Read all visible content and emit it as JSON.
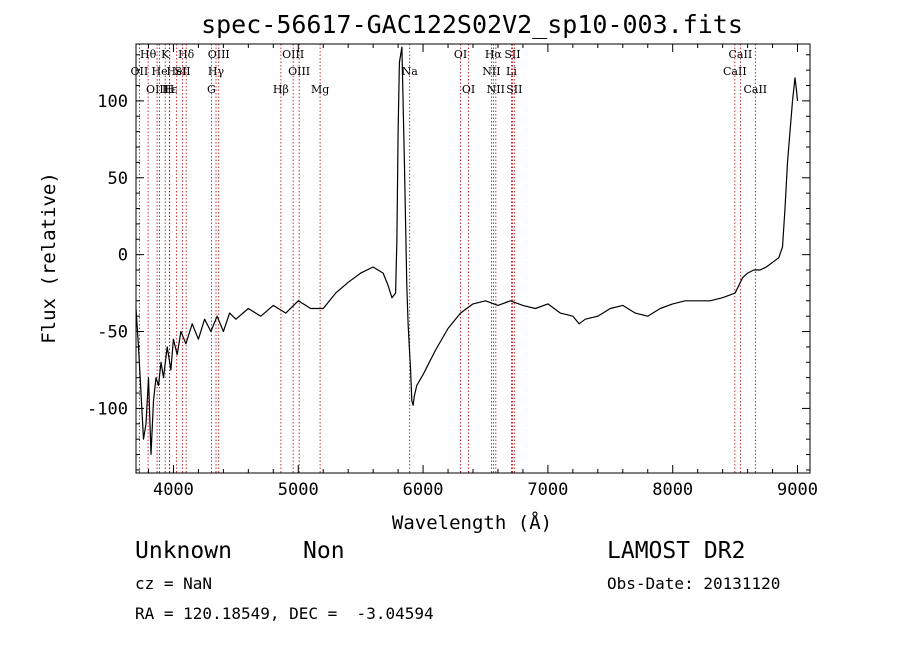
{
  "chart_data": {
    "type": "line",
    "title": "spec-56617-GAC122S02V2_sp10-003.fits",
    "xlabel": "Wavelength (Å)",
    "ylabel": "Flux (relative)",
    "xlim": [
      3700,
      9100
    ],
    "ylim": [
      -142,
      137
    ],
    "xticks": [
      4000,
      5000,
      6000,
      7000,
      8000,
      9000
    ],
    "yticks": [
      -100,
      -50,
      0,
      50,
      100
    ],
    "grid": false,
    "series": [
      {
        "x": [
          3700,
          3720,
          3740,
          3760,
          3780,
          3800,
          3820,
          3840,
          3860,
          3880,
          3900,
          3920,
          3950,
          3980,
          4000,
          4030,
          4060,
          4100,
          4150,
          4200,
          4250,
          4300,
          4350,
          4400,
          4450,
          4500,
          4600,
          4700,
          4800,
          4900,
          5000,
          5100,
          5200,
          5300,
          5400,
          5500,
          5600,
          5680,
          5720,
          5750,
          5780,
          5790,
          5800,
          5810,
          5830,
          5850,
          5870,
          5880,
          5890,
          5900,
          5910,
          5920,
          5930,
          5950,
          6000,
          6050,
          6100,
          6200,
          6300,
          6400,
          6500,
          6600,
          6700,
          6800,
          6900,
          7000,
          7100,
          7200,
          7250,
          7300,
          7400,
          7500,
          7600,
          7700,
          7800,
          7900,
          8000,
          8100,
          8200,
          8300,
          8400,
          8500,
          8560,
          8600,
          8650,
          8700,
          8750,
          8800,
          8850,
          8880,
          8900,
          8920,
          8940,
          8960,
          8980,
          8990,
          9000
        ],
        "values": [
          -35,
          -60,
          -90,
          -120,
          -110,
          -80,
          -130,
          -95,
          -80,
          -85,
          -70,
          -80,
          -60,
          -75,
          -55,
          -65,
          -50,
          -58,
          -45,
          -55,
          -42,
          -50,
          -40,
          -50,
          -38,
          -42,
          -35,
          -40,
          -33,
          -38,
          -30,
          -35,
          -35,
          -25,
          -18,
          -12,
          -8,
          -12,
          -20,
          -28,
          -25,
          10,
          80,
          125,
          135,
          60,
          -20,
          -45,
          -60,
          -75,
          -95,
          -98,
          -92,
          -85,
          -78,
          -70,
          -62,
          -48,
          -38,
          -32,
          -30,
          -33,
          -30,
          -33,
          -35,
          -32,
          -38,
          -40,
          -45,
          -42,
          -40,
          -35,
          -33,
          -38,
          -40,
          -35,
          -32,
          -30,
          -30,
          -30,
          -28,
          -25,
          -15,
          -12,
          -10,
          -10,
          -8,
          -5,
          -2,
          5,
          30,
          60,
          80,
          100,
          115,
          108,
          100
        ]
      }
    ],
    "line_labels": [
      {
        "label": "Hθ",
        "x": 3797,
        "row": 1
      },
      {
        "label": "OII",
        "x": 3727,
        "row": 2
      },
      {
        "label": "OIII",
        "x": 3869,
        "row": 3
      },
      {
        "label": "He",
        "x": 3889,
        "row": 2
      },
      {
        "label": "K",
        "x": 3934,
        "row": 1
      },
      {
        "label": "Hε",
        "x": 3970,
        "row": 3
      },
      {
        "label": "HeI",
        "x": 4026,
        "row": 2
      },
      {
        "label": "Hδ",
        "x": 4102,
        "row": 1
      },
      {
        "label": "SII",
        "x": 4072,
        "row": 2
      },
      {
        "label": "H",
        "x": 3968,
        "row": 3
      },
      {
        "label": "OIII",
        "x": 4363,
        "row": 1
      },
      {
        "label": "Hγ",
        "x": 4341,
        "row": 2
      },
      {
        "label": "G",
        "x": 4304,
        "row": 3
      },
      {
        "label": "OIII",
        "x": 4959,
        "row": 1
      },
      {
        "label": "OIII",
        "x": 5007,
        "row": 2
      },
      {
        "label": "Hβ",
        "x": 4861,
        "row": 3
      },
      {
        "label": "Mg",
        "x": 5175,
        "row": 3
      },
      {
        "label": "Na",
        "x": 5893,
        "row": 2
      },
      {
        "label": "OI",
        "x": 6300,
        "row": 1
      },
      {
        "label": "OI",
        "x": 6364,
        "row": 3
      },
      {
        "label": "Hα",
        "x": 6563,
        "row": 1
      },
      {
        "label": "SII",
        "x": 6716,
        "row": 1
      },
      {
        "label": "NII",
        "x": 6548,
        "row": 2
      },
      {
        "label": "Li",
        "x": 6708,
        "row": 2
      },
      {
        "label": "NII",
        "x": 6583,
        "row": 3
      },
      {
        "label": "SII",
        "x": 6731,
        "row": 3
      },
      {
        "label": "CaII",
        "x": 8542,
        "row": 1
      },
      {
        "label": "CaII",
        "x": 8498,
        "row": 2
      },
      {
        "label": "CaII",
        "x": 8662,
        "row": 3
      }
    ]
  },
  "footer": {
    "class_label": "Unknown",
    "subclass_label": "Non",
    "survey_label": "LAMOST DR2",
    "cz_text": "cz = NaN",
    "obs_date_text": "Obs-Date: 20131120",
    "coords_text": "RA = 120.18549, DEC =  -3.04594"
  }
}
